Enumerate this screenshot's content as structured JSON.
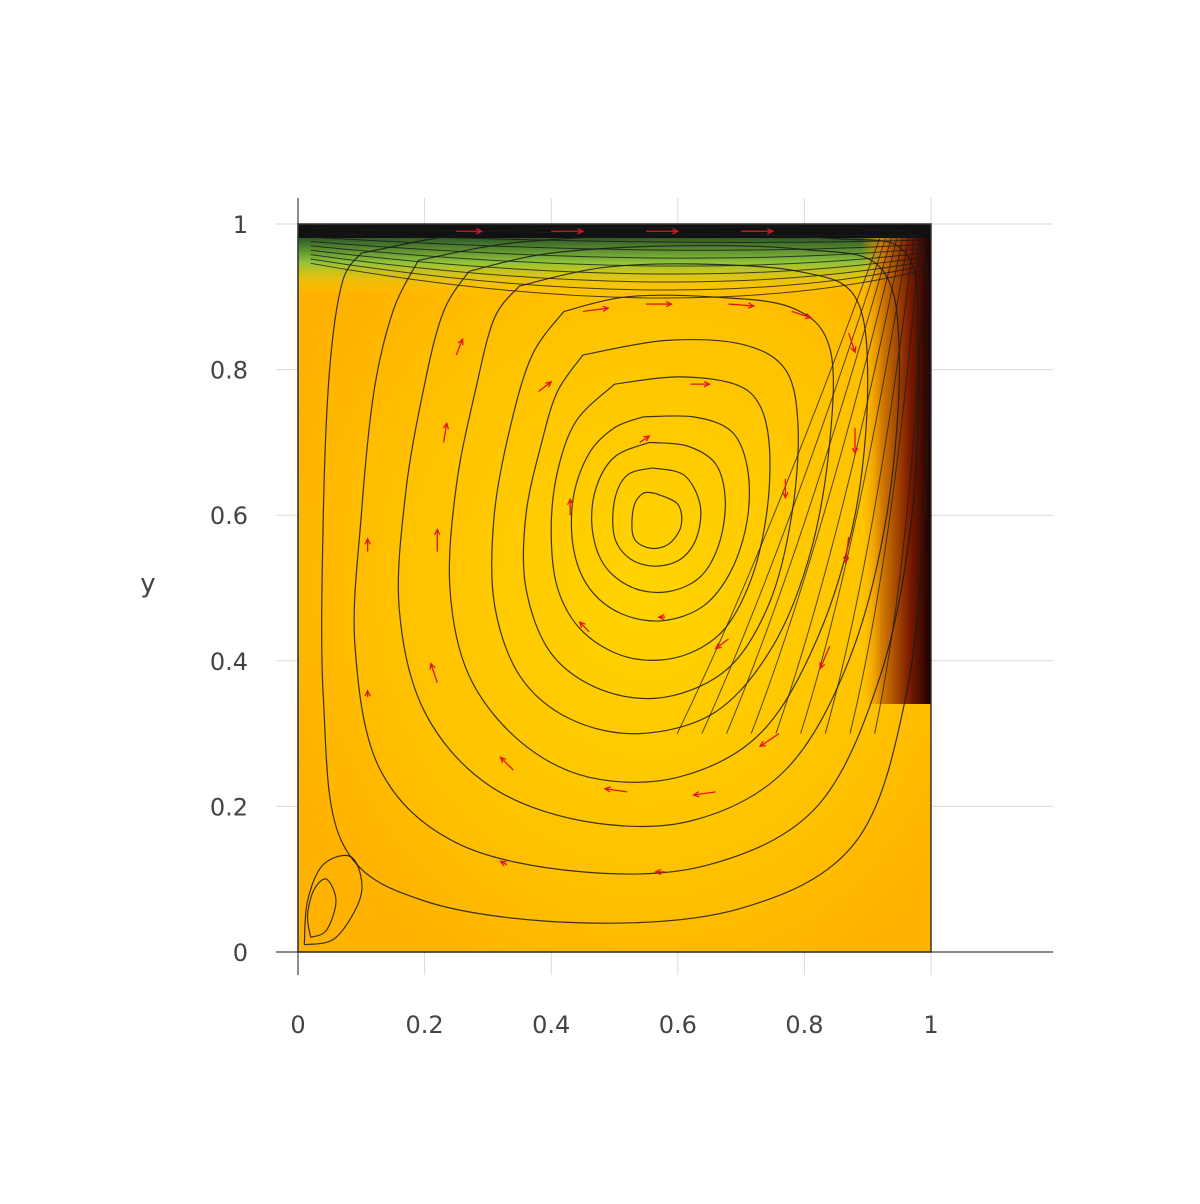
{
  "chart_data": {
    "type": "heatmap",
    "subtype": "contour-with-vector-field",
    "title": "",
    "xlabel": "",
    "ylabel": "y",
    "xlim": [
      0,
      1
    ],
    "ylim": [
      0,
      1
    ],
    "x_ticks": [
      0,
      0.2,
      0.4,
      0.6,
      0.8,
      1
    ],
    "y_ticks": [
      0,
      0.2,
      0.4,
      0.6,
      0.8,
      1
    ],
    "x_tick_labels": [
      "0",
      "0.2",
      "0.4",
      "0.6",
      "0.8",
      "1"
    ],
    "y_tick_labels": [
      "0",
      "0.2",
      "0.4",
      "0.6",
      "0.8",
      "1"
    ],
    "grid": true,
    "legend": "none",
    "colors": {
      "field_base": "#ffb300",
      "field_light": "#ffd400",
      "top_band": "#7fbf3f",
      "dark_edge": "#1a0000",
      "contour_line": "#1a1a1a",
      "arrow": "#e0142a",
      "grid": "#d9d9d9",
      "axis": "#444444"
    },
    "primary_vortex_center": [
      0.565,
      0.595
    ],
    "secondary_vortex_center": [
      0.03,
      0.03
    ],
    "contour_lines": [
      {
        "name": "core-1",
        "points": [
          [
            0.565,
            0.63
          ],
          [
            0.6,
            0.615
          ],
          [
            0.605,
            0.585
          ],
          [
            0.585,
            0.56
          ],
          [
            0.555,
            0.555
          ],
          [
            0.53,
            0.57
          ],
          [
            0.53,
            0.61
          ],
          [
            0.545,
            0.63
          ],
          [
            0.565,
            0.63
          ]
        ]
      },
      {
        "name": "core-2",
        "points": [
          [
            0.56,
            0.665
          ],
          [
            0.61,
            0.655
          ],
          [
            0.635,
            0.615
          ],
          [
            0.63,
            0.57
          ],
          [
            0.605,
            0.54
          ],
          [
            0.565,
            0.53
          ],
          [
            0.525,
            0.54
          ],
          [
            0.5,
            0.57
          ],
          [
            0.5,
            0.62
          ],
          [
            0.52,
            0.655
          ],
          [
            0.56,
            0.665
          ]
        ]
      },
      {
        "name": "core-3",
        "points": [
          [
            0.555,
            0.7
          ],
          [
            0.615,
            0.695
          ],
          [
            0.66,
            0.67
          ],
          [
            0.675,
            0.62
          ],
          [
            0.665,
            0.56
          ],
          [
            0.635,
            0.515
          ],
          [
            0.585,
            0.495
          ],
          [
            0.53,
            0.5
          ],
          [
            0.485,
            0.53
          ],
          [
            0.465,
            0.58
          ],
          [
            0.47,
            0.635
          ],
          [
            0.5,
            0.68
          ],
          [
            0.555,
            0.7
          ]
        ]
      },
      {
        "name": "core-4",
        "points": [
          [
            0.545,
            0.735
          ],
          [
            0.625,
            0.735
          ],
          [
            0.685,
            0.715
          ],
          [
            0.71,
            0.665
          ],
          [
            0.71,
            0.595
          ],
          [
            0.685,
            0.525
          ],
          [
            0.64,
            0.475
          ],
          [
            0.575,
            0.455
          ],
          [
            0.51,
            0.465
          ],
          [
            0.46,
            0.5
          ],
          [
            0.435,
            0.555
          ],
          [
            0.435,
            0.625
          ],
          [
            0.46,
            0.685
          ],
          [
            0.5,
            0.72
          ],
          [
            0.545,
            0.735
          ]
        ]
      },
      {
        "name": "mid-1",
        "points": [
          [
            0.5,
            0.78
          ],
          [
            0.6,
            0.79
          ],
          [
            0.69,
            0.78
          ],
          [
            0.73,
            0.75
          ],
          [
            0.745,
            0.69
          ],
          [
            0.74,
            0.6
          ],
          [
            0.715,
            0.51
          ],
          [
            0.67,
            0.44
          ],
          [
            0.6,
            0.405
          ],
          [
            0.52,
            0.405
          ],
          [
            0.45,
            0.44
          ],
          [
            0.41,
            0.5
          ],
          [
            0.4,
            0.58
          ],
          [
            0.41,
            0.66
          ],
          [
            0.44,
            0.73
          ],
          [
            0.5,
            0.78
          ]
        ]
      },
      {
        "name": "mid-2",
        "points": [
          [
            0.45,
            0.82
          ],
          [
            0.58,
            0.84
          ],
          [
            0.7,
            0.835
          ],
          [
            0.77,
            0.8
          ],
          [
            0.79,
            0.72
          ],
          [
            0.78,
            0.6
          ],
          [
            0.745,
            0.48
          ],
          [
            0.68,
            0.39
          ],
          [
            0.58,
            0.35
          ],
          [
            0.48,
            0.36
          ],
          [
            0.4,
            0.41
          ],
          [
            0.36,
            0.5
          ],
          [
            0.36,
            0.6
          ],
          [
            0.385,
            0.7
          ],
          [
            0.41,
            0.77
          ],
          [
            0.45,
            0.82
          ]
        ]
      },
      {
        "name": "mid-3",
        "points": [
          [
            0.42,
            0.88
          ],
          [
            0.52,
            0.9
          ],
          [
            0.65,
            0.9
          ],
          [
            0.78,
            0.885
          ],
          [
            0.84,
            0.83
          ],
          [
            0.84,
            0.7
          ],
          [
            0.81,
            0.55
          ],
          [
            0.75,
            0.42
          ],
          [
            0.66,
            0.33
          ],
          [
            0.54,
            0.3
          ],
          [
            0.43,
            0.32
          ],
          [
            0.35,
            0.38
          ],
          [
            0.31,
            0.48
          ],
          [
            0.31,
            0.6
          ],
          [
            0.335,
            0.72
          ],
          [
            0.37,
            0.82
          ],
          [
            0.42,
            0.88
          ]
        ]
      },
      {
        "name": "outer-1",
        "points": [
          [
            0.35,
            0.915
          ],
          [
            0.48,
            0.94
          ],
          [
            0.63,
            0.945
          ],
          [
            0.79,
            0.935
          ],
          [
            0.88,
            0.9
          ],
          [
            0.9,
            0.78
          ],
          [
            0.88,
            0.6
          ],
          [
            0.82,
            0.43
          ],
          [
            0.73,
            0.3
          ],
          [
            0.6,
            0.24
          ],
          [
            0.46,
            0.24
          ],
          [
            0.35,
            0.29
          ],
          [
            0.27,
            0.38
          ],
          [
            0.24,
            0.5
          ],
          [
            0.25,
            0.64
          ],
          [
            0.28,
            0.77
          ],
          [
            0.31,
            0.87
          ],
          [
            0.35,
            0.915
          ]
        ]
      },
      {
        "name": "outer-2",
        "points": [
          [
            0.27,
            0.935
          ],
          [
            0.4,
            0.96
          ],
          [
            0.6,
            0.97
          ],
          [
            0.8,
            0.965
          ],
          [
            0.92,
            0.94
          ],
          [
            0.95,
            0.82
          ],
          [
            0.93,
            0.6
          ],
          [
            0.87,
            0.4
          ],
          [
            0.77,
            0.25
          ],
          [
            0.62,
            0.18
          ],
          [
            0.45,
            0.18
          ],
          [
            0.3,
            0.23
          ],
          [
            0.2,
            0.33
          ],
          [
            0.16,
            0.47
          ],
          [
            0.17,
            0.63
          ],
          [
            0.2,
            0.78
          ],
          [
            0.23,
            0.88
          ],
          [
            0.27,
            0.935
          ]
        ]
      },
      {
        "name": "outer-3",
        "points": [
          [
            0.19,
            0.95
          ],
          [
            0.35,
            0.975
          ],
          [
            0.6,
            0.985
          ],
          [
            0.85,
            0.98
          ],
          [
            0.96,
            0.96
          ],
          [
            0.98,
            0.84
          ],
          [
            0.97,
            0.6
          ],
          [
            0.92,
            0.38
          ],
          [
            0.82,
            0.2
          ],
          [
            0.65,
            0.12
          ],
          [
            0.45,
            0.11
          ],
          [
            0.25,
            0.15
          ],
          [
            0.13,
            0.25
          ],
          [
            0.09,
            0.42
          ],
          [
            0.1,
            0.6
          ],
          [
            0.12,
            0.77
          ],
          [
            0.15,
            0.88
          ],
          [
            0.19,
            0.95
          ]
        ]
      },
      {
        "name": "outer-4",
        "points": [
          [
            0.1,
            0.96
          ],
          [
            0.3,
            0.99
          ],
          [
            0.6,
            0.995
          ],
          [
            0.9,
            0.993
          ],
          [
            0.985,
            0.97
          ],
          [
            0.995,
            0.84
          ],
          [
            0.99,
            0.6
          ],
          [
            0.96,
            0.35
          ],
          [
            0.88,
            0.15
          ],
          [
            0.7,
            0.06
          ],
          [
            0.45,
            0.04
          ],
          [
            0.2,
            0.07
          ],
          [
            0.07,
            0.15
          ],
          [
            0.04,
            0.35
          ],
          [
            0.04,
            0.6
          ],
          [
            0.05,
            0.8
          ],
          [
            0.07,
            0.92
          ],
          [
            0.1,
            0.96
          ]
        ]
      },
      {
        "name": "corner-1",
        "points": [
          [
            0.02,
            0.02
          ],
          [
            0.045,
            0.03
          ],
          [
            0.06,
            0.07
          ],
          [
            0.045,
            0.1
          ],
          [
            0.025,
            0.085
          ],
          [
            0.015,
            0.05
          ],
          [
            0.02,
            0.02
          ]
        ]
      },
      {
        "name": "corner-2",
        "points": [
          [
            0.01,
            0.01
          ],
          [
            0.06,
            0.02
          ],
          [
            0.1,
            0.08
          ],
          [
            0.085,
            0.13
          ],
          [
            0.04,
            0.12
          ],
          [
            0.015,
            0.07
          ],
          [
            0.01,
            0.01
          ]
        ]
      }
    ],
    "vectors": [
      {
        "x": 0.25,
        "y": 0.99,
        "dx": 0.04,
        "dy": 0.0
      },
      {
        "x": 0.4,
        "y": 0.99,
        "dx": 0.05,
        "dy": 0.0
      },
      {
        "x": 0.55,
        "y": 0.99,
        "dx": 0.05,
        "dy": 0.0
      },
      {
        "x": 0.7,
        "y": 0.99,
        "dx": 0.05,
        "dy": 0.0
      },
      {
        "x": 0.45,
        "y": 0.88,
        "dx": 0.04,
        "dy": 0.005
      },
      {
        "x": 0.55,
        "y": 0.89,
        "dx": 0.04,
        "dy": 0.0
      },
      {
        "x": 0.68,
        "y": 0.89,
        "dx": 0.04,
        "dy": -0.003
      },
      {
        "x": 0.78,
        "y": 0.88,
        "dx": 0.03,
        "dy": -0.01
      },
      {
        "x": 0.87,
        "y": 0.85,
        "dx": 0.01,
        "dy": -0.03
      },
      {
        "x": 0.88,
        "y": 0.72,
        "dx": 0.0,
        "dy": -0.04
      },
      {
        "x": 0.87,
        "y": 0.57,
        "dx": -0.005,
        "dy": -0.04
      },
      {
        "x": 0.84,
        "y": 0.42,
        "dx": -0.015,
        "dy": -0.035
      },
      {
        "x": 0.76,
        "y": 0.3,
        "dx": -0.03,
        "dy": -0.02
      },
      {
        "x": 0.66,
        "y": 0.22,
        "dx": -0.035,
        "dy": -0.005
      },
      {
        "x": 0.52,
        "y": 0.22,
        "dx": -0.035,
        "dy": 0.005
      },
      {
        "x": 0.34,
        "y": 0.25,
        "dx": -0.02,
        "dy": 0.02
      },
      {
        "x": 0.22,
        "y": 0.37,
        "dx": -0.01,
        "dy": 0.03
      },
      {
        "x": 0.22,
        "y": 0.55,
        "dx": 0.0,
        "dy": 0.035
      },
      {
        "x": 0.23,
        "y": 0.7,
        "dx": 0.005,
        "dy": 0.03
      },
      {
        "x": 0.25,
        "y": 0.82,
        "dx": 0.01,
        "dy": 0.025
      },
      {
        "x": 0.38,
        "y": 0.77,
        "dx": 0.02,
        "dy": 0.015
      },
      {
        "x": 0.62,
        "y": 0.78,
        "dx": 0.03,
        "dy": 0.0
      },
      {
        "x": 0.77,
        "y": 0.65,
        "dx": 0.0,
        "dy": -0.03
      },
      {
        "x": 0.68,
        "y": 0.43,
        "dx": -0.02,
        "dy": -0.015
      },
      {
        "x": 0.46,
        "y": 0.44,
        "dx": -0.015,
        "dy": 0.015
      },
      {
        "x": 0.43,
        "y": 0.6,
        "dx": 0.0,
        "dy": 0.025
      },
      {
        "x": 0.54,
        "y": 0.7,
        "dx": 0.015,
        "dy": 0.01
      },
      {
        "x": 0.58,
        "y": 0.46,
        "dx": -0.01,
        "dy": 0.0
      },
      {
        "x": 0.11,
        "y": 0.55,
        "dx": 0.0,
        "dy": 0.02
      },
      {
        "x": 0.11,
        "y": 0.35,
        "dx": 0.0,
        "dy": 0.01
      },
      {
        "x": 0.58,
        "y": 0.11,
        "dx": -0.015,
        "dy": 0.0
      },
      {
        "x": 0.33,
        "y": 0.12,
        "dx": -0.01,
        "dy": 0.005
      }
    ]
  }
}
